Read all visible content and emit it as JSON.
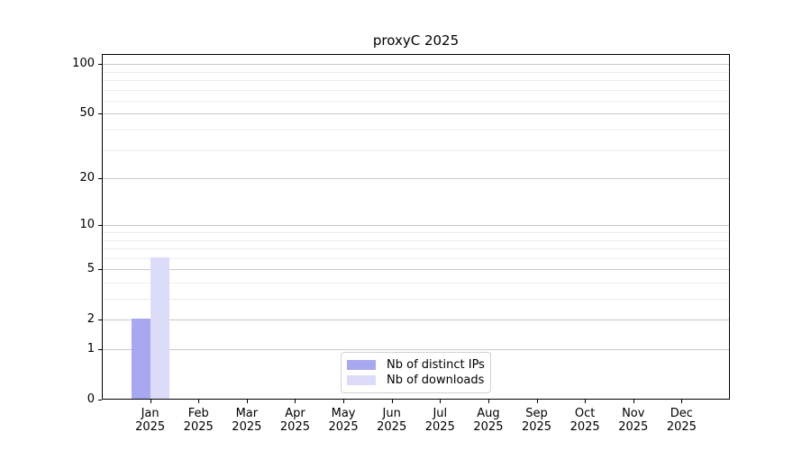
{
  "chart_data": {
    "type": "bar",
    "title": "proxyC 2025",
    "months": [
      "Jan",
      "Feb",
      "Mar",
      "Apr",
      "May",
      "Jun",
      "Jul",
      "Aug",
      "Sep",
      "Oct",
      "Nov",
      "Dec"
    ],
    "year": "2025",
    "series": [
      {
        "name": "Nb of distinct IPs",
        "color": "#a8a8f1",
        "values": [
          2,
          0,
          0,
          0,
          0,
          0,
          0,
          0,
          0,
          0,
          0,
          0
        ]
      },
      {
        "name": "Nb of downloads",
        "color": "#dcdcf8",
        "values": [
          6,
          0,
          0,
          0,
          0,
          0,
          0,
          0,
          0,
          0,
          0,
          0
        ]
      }
    ],
    "y_axis": {
      "ticks": [
        0,
        1,
        2,
        5,
        10,
        20,
        50,
        100
      ],
      "minor_ticks": [
        3,
        4,
        6,
        7,
        8,
        9,
        30,
        40,
        60,
        70,
        80,
        90
      ],
      "scale": "log1p",
      "range_max": 115
    },
    "x_axis": {
      "label_lines": 2
    },
    "grid": true,
    "legend_position": "lower center"
  }
}
